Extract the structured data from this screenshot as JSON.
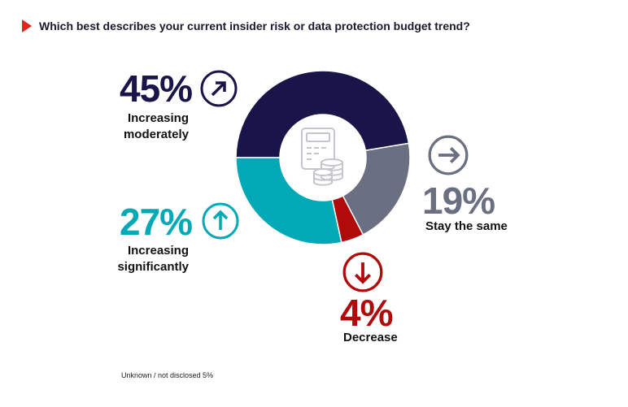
{
  "question": "Which best describes your current insider risk or data protection budget trend?",
  "footnote": "Unknown / not disclosed 5%",
  "chart_data": {
    "type": "pie",
    "title": "Which best describes your current insider risk or data protection budget trend?",
    "categories": [
      "Increasing moderately",
      "Stay the same",
      "Decrease",
      "Increasing significantly"
    ],
    "values": [
      45,
      19,
      4,
      27
    ],
    "labels": [
      "45%",
      "19%",
      "4%",
      "27%"
    ],
    "colors": [
      "#191548",
      "#6b6f82",
      "#b00a0a",
      "#00a9b5"
    ],
    "icons": [
      "arrow-up-right-icon",
      "arrow-right-icon",
      "arrow-down-icon",
      "arrow-up-icon"
    ],
    "center_icon": "calculator-coins-icon",
    "note": "Unknown / not disclosed 5%"
  }
}
